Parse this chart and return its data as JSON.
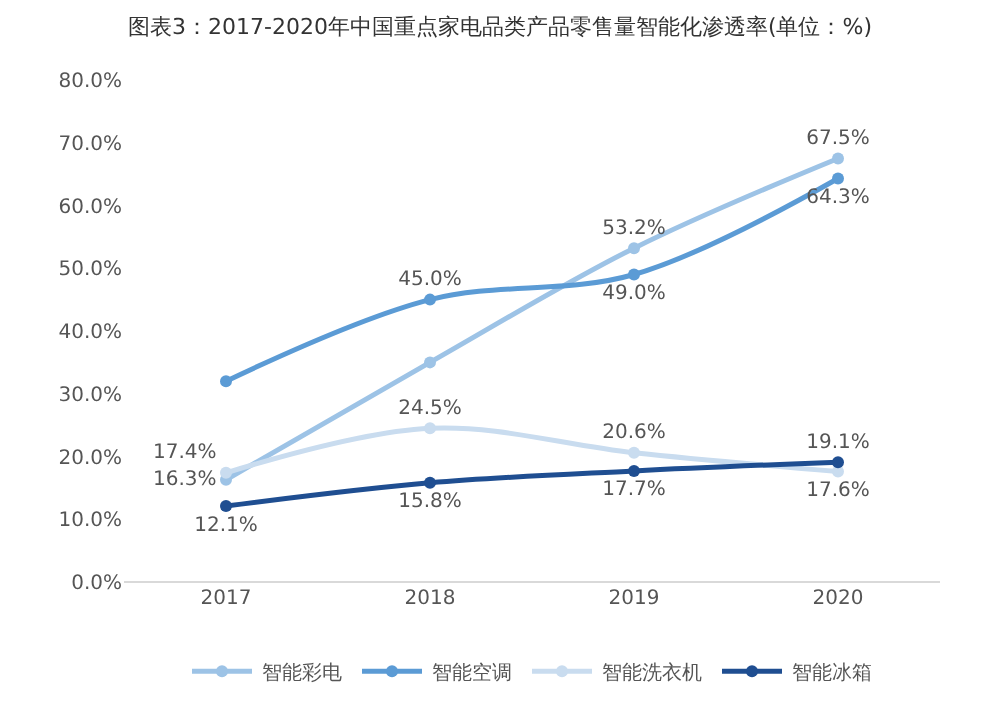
{
  "chart_data": {
    "type": "line",
    "title": "图表3：2017-2020年中国重点家电品类产品零售量智能化渗透率(单位：%)",
    "categories": [
      "2017",
      "2018",
      "2019",
      "2020"
    ],
    "series": [
      {
        "name": "智能彩电",
        "color": "#9dc3e6",
        "values": [
          16.3,
          35,
          53.2,
          67.5
        ],
        "value_labels": [
          "16.3%",
          null,
          "53.2%",
          "67.5%"
        ]
      },
      {
        "name": "智能空调",
        "color": "#5b9bd5",
        "values": [
          32,
          45.0,
          49.0,
          64.3
        ],
        "value_labels": [
          null,
          "45.0%",
          "49.0%",
          "64.3%"
        ]
      },
      {
        "name": "智能洗衣机",
        "color": "#c9dcef",
        "values": [
          17.4,
          24.5,
          20.6,
          17.6
        ],
        "value_labels": [
          "17.4%",
          "24.5%",
          "20.6%",
          "17.6%"
        ]
      },
      {
        "name": "智能冰箱",
        "color": "#1f4e91",
        "values": [
          12.1,
          15.8,
          17.7,
          19.1
        ],
        "value_labels": [
          "12.1%",
          "15.8%",
          "17.7%",
          "19.1%"
        ]
      }
    ],
    "ylim": [
      0,
      80
    ],
    "yticks": [
      {
        "value": 0,
        "label": "0.0%"
      },
      {
        "value": 10,
        "label": "10.0%"
      },
      {
        "value": 20,
        "label": "20.0%"
      },
      {
        "value": 30,
        "label": "30.0%"
      },
      {
        "value": 40,
        "label": "40.0%"
      },
      {
        "value": 50,
        "label": "50.0%"
      },
      {
        "value": 60,
        "label": "60.0%"
      },
      {
        "value": 70,
        "label": "70.0%"
      },
      {
        "value": 80,
        "label": "80.0%"
      }
    ],
    "legend": "bottom",
    "marker": "circle",
    "line_style": "solid"
  }
}
